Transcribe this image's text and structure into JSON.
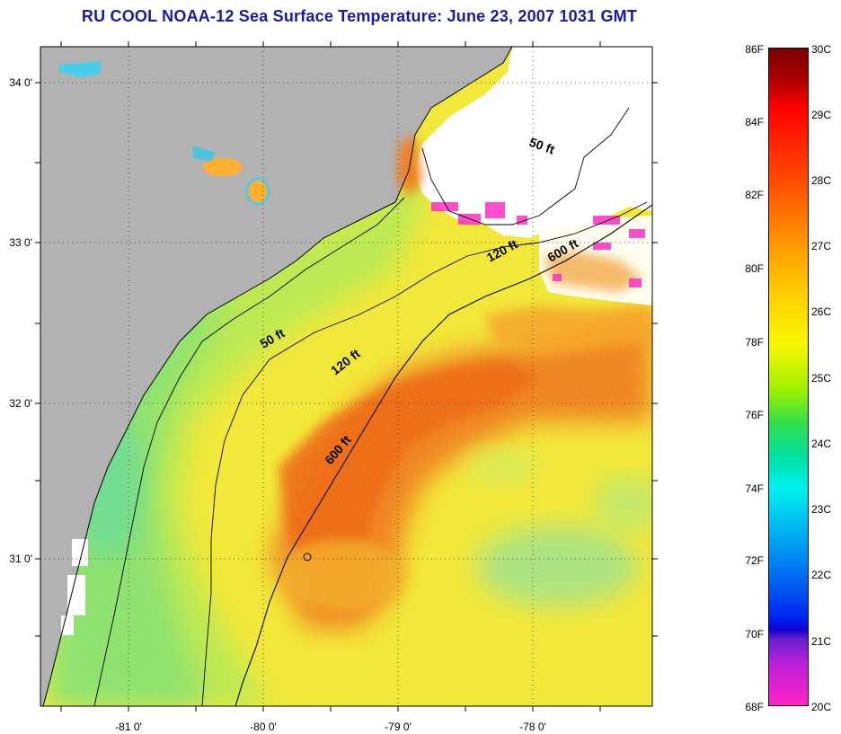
{
  "title": "RU COOL  NOAA-12  Sea Surface Temperature:  June 23, 2007 1031 GMT",
  "longitude_labels": [
    "-81 0'",
    "-80 0'",
    "-79 0'",
    "-78 0'"
  ],
  "latitude_labels": [
    "34 0'",
    "33 0'",
    "32 0'",
    "31 0'"
  ],
  "contour_labels": [
    {
      "text": "50 ft"
    },
    {
      "text": "120 ft"
    },
    {
      "text": "600 ft"
    },
    {
      "text": "50 ft"
    },
    {
      "text": "120 ft"
    },
    {
      "text": "600 ft"
    }
  ],
  "colorbar": {
    "fahrenheit_labels": [
      "86F",
      "84F",
      "82F",
      "80F",
      "78F",
      "76F",
      "74F",
      "72F",
      "70F",
      "68F"
    ],
    "celsius_labels": [
      "30C",
      "29C",
      "28C",
      "27C",
      "26C",
      "25C",
      "24C",
      "23C",
      "22C",
      "21C",
      "20C"
    ]
  },
  "colors": {
    "land": "#b2b2b2",
    "cloud": "#ffffff",
    "warm_core": "#f07a1e",
    "shelf_yellow": "#f4e938",
    "cool_shelf": "#9fe56a",
    "title_blue": "#1a1aa6"
  }
}
